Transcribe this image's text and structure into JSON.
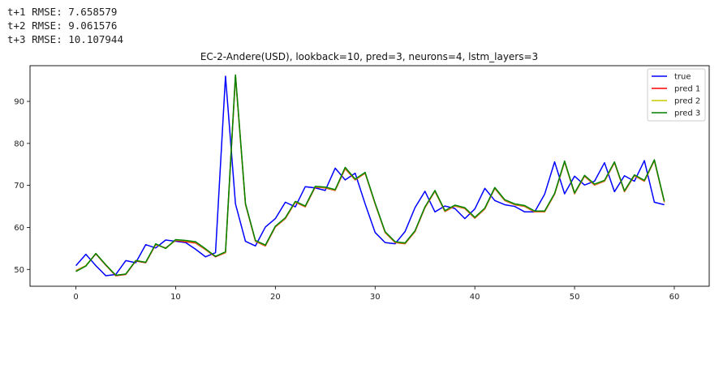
{
  "output_lines": [
    "t+1 RMSE: 7.658579",
    "t+2 RMSE: 9.061576",
    "t+3 RMSE: 10.107944"
  ],
  "chart_data": {
    "type": "line",
    "title": "EC-2-Andere(USD), lookback=10, pred=3, neurons=4, lstm_layers=3",
    "xlabel": "",
    "ylabel": "",
    "xlim": [
      -4.6,
      63.5
    ],
    "ylim": [
      46,
      98.5
    ],
    "xticks": [
      0,
      10,
      20,
      30,
      40,
      50,
      60
    ],
    "yticks": [
      50,
      60,
      70,
      80,
      90
    ],
    "grid": false,
    "legend_position": "top-right",
    "series": [
      {
        "name": "true",
        "color": "#0000ff",
        "values": [
          50.9,
          53.6,
          50.9,
          48.5,
          48.8,
          52.1,
          51.6,
          55.9,
          55.1,
          57.0,
          56.7,
          56.4,
          54.8,
          53.0,
          54.0,
          96.0,
          65.6,
          56.7,
          55.6,
          60.1,
          62.1,
          66.0,
          64.9,
          69.7,
          69.4,
          68.8,
          74.1,
          71.3,
          72.9,
          65.6,
          58.8,
          56.4,
          56.1,
          59.0,
          64.7,
          68.6,
          63.7,
          65.1,
          64.5,
          62.1,
          64.4,
          69.3,
          66.4,
          65.4,
          65.0,
          63.7,
          63.7,
          67.9,
          75.6,
          68.0,
          72.2,
          70.1,
          71.0,
          75.4,
          68.5,
          72.3,
          71.0,
          75.9,
          66.0,
          65.4
        ]
      },
      {
        "name": "pred 1",
        "color": "#ff0000",
        "values": [
          49.7,
          50.9,
          53.7,
          51.0,
          48.5,
          48.8,
          52.0,
          51.6,
          55.9,
          55.1,
          56.9,
          56.6,
          56.3,
          54.7,
          53.0,
          54.0,
          96.0,
          65.5,
          56.7,
          55.6,
          60.1,
          62.1,
          66.0,
          64.9,
          69.6,
          69.4,
          68.8,
          74.0,
          71.3,
          72.9,
          65.6,
          58.8,
          56.4,
          56.1,
          59.0,
          64.7,
          68.6,
          63.8,
          65.1,
          64.5,
          62.2,
          64.4,
          69.3,
          66.4,
          65.4,
          65.0,
          63.7,
          63.7,
          67.9,
          75.6,
          68.0,
          72.2,
          70.1,
          71.0,
          75.4,
          68.5,
          72.3,
          71.0,
          75.9,
          66.0
        ]
      },
      {
        "name": "pred 2",
        "color": "#c8c800",
        "values": [
          49.6,
          50.9,
          53.8,
          51.1,
          48.6,
          48.9,
          52.1,
          51.7,
          56.0,
          55.0,
          57.0,
          56.8,
          56.5,
          54.8,
          53.1,
          54.1,
          96.2,
          65.6,
          56.8,
          55.7,
          60.2,
          62.2,
          66.1,
          65.0,
          69.7,
          69.5,
          68.9,
          74.2,
          71.4,
          73.0,
          65.7,
          58.9,
          56.5,
          56.2,
          59.1,
          64.8,
          68.7,
          63.9,
          65.2,
          64.6,
          62.3,
          64.5,
          69.4,
          66.5,
          65.5,
          65.1,
          63.8,
          63.8,
          68.0,
          75.7,
          68.1,
          72.3,
          70.2,
          71.1,
          75.5,
          68.6,
          72.4,
          71.1,
          76.0,
          66.1
        ]
      },
      {
        "name": "pred 3",
        "color": "#008000",
        "values": [
          49.5,
          50.8,
          53.8,
          51.1,
          48.6,
          48.9,
          52.1,
          51.7,
          56.1,
          55.0,
          57.1,
          56.9,
          56.6,
          54.9,
          53.1,
          54.2,
          96.3,
          65.7,
          56.9,
          55.8,
          60.3,
          62.3,
          66.2,
          65.1,
          69.8,
          69.6,
          69.0,
          74.3,
          71.5,
          73.1,
          65.8,
          59.0,
          56.6,
          56.3,
          59.2,
          64.9,
          68.8,
          64.0,
          65.3,
          64.7,
          62.4,
          64.6,
          69.5,
          66.6,
          65.6,
          65.2,
          63.9,
          63.9,
          68.1,
          75.8,
          68.2,
          72.4,
          70.3,
          71.2,
          75.6,
          68.7,
          72.5,
          71.2,
          76.1,
          66.2
        ]
      }
    ]
  }
}
